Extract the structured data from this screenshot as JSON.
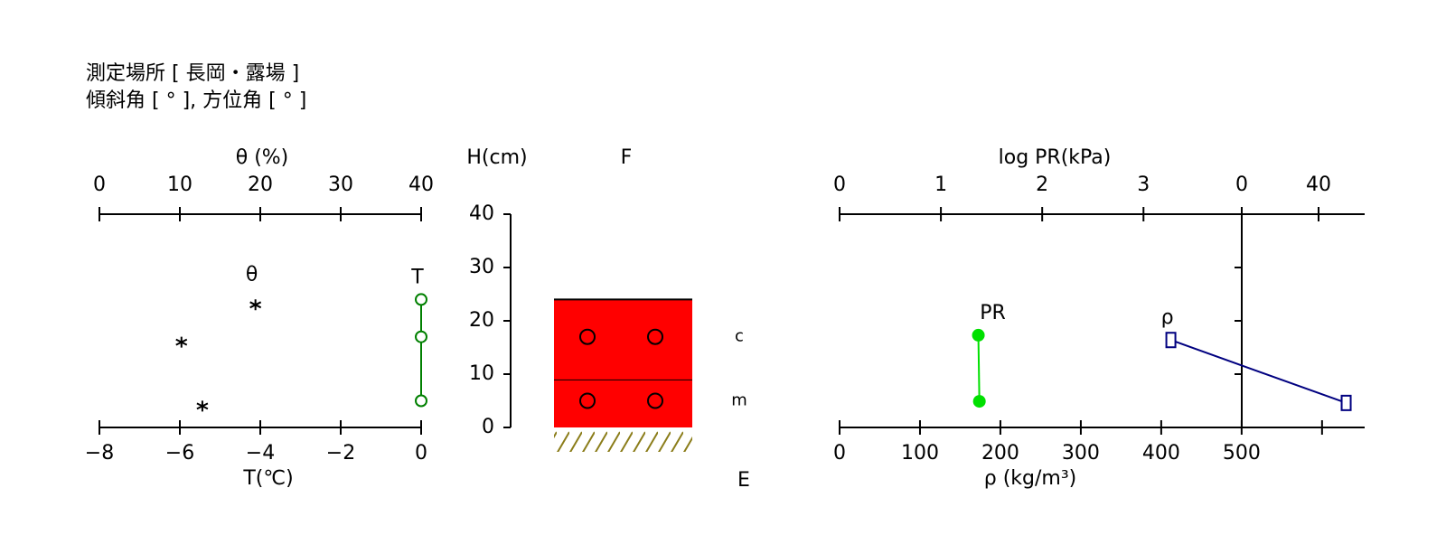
{
  "header": {
    "location": "測定場所 [ 長岡・露場 ]",
    "angles": "傾斜角 [ ° ], 方位角 [ ° ]"
  },
  "chart_data": [
    {
      "type": "scatter",
      "x2_label": "θ (%)",
      "x2lim": [
        0,
        40
      ],
      "x2ticks": [
        0,
        10,
        20,
        30,
        40
      ],
      "x_label": "T(℃)",
      "xlim": [
        -8,
        0
      ],
      "xticks": [
        {
          "value": -8,
          "label": "−8"
        },
        {
          "value": -6,
          "label": "−6"
        },
        {
          "value": -4,
          "label": "−4"
        },
        {
          "value": -2,
          "label": "−2"
        },
        0
      ],
      "ylim": [
        0,
        40
      ],
      "series": [
        {
          "name": "θ",
          "color": "#000000",
          "marker": "asterisk",
          "axis": "x2",
          "x": [
            19.4,
            10.2,
            12.8
          ],
          "values": [
            23,
            16,
            4
          ]
        },
        {
          "name": "T",
          "color": "#008000",
          "marker": "circle",
          "line": true,
          "x": [
            0,
            0,
            0
          ],
          "values": [
            24,
            17,
            5
          ]
        }
      ]
    },
    {
      "type": "profile",
      "y_label": "H(cm)",
      "top_label": "F",
      "bottom_label": "E",
      "ylim": [
        0,
        40
      ],
      "yticks": [
        0,
        10,
        20,
        30,
        40
      ],
      "color": "#ff0000",
      "layers": [
        {
          "bottom": 0,
          "top": 9,
          "grain": "m",
          "height": 5
        },
        {
          "bottom": 9,
          "top": 24,
          "grain": "c",
          "height": 17
        }
      ]
    },
    {
      "type": "scatter",
      "x2_label": "log PR(kPa)",
      "x2lim": [
        0,
        3.97
      ],
      "x2ticks": [
        0,
        1,
        2,
        3
      ],
      "x3lim": [
        0,
        64
      ],
      "x3ticks": [
        0,
        40
      ],
      "x_label": "ρ (kg/m³)",
      "xlim": [
        0,
        653
      ],
      "xticks": [
        0,
        100,
        200,
        300,
        400,
        500
      ],
      "xticks_unlabeled": [
        600
      ],
      "ylim": [
        0,
        40
      ],
      "yticks": [
        10,
        20,
        30
      ],
      "series": [
        {
          "name": "PR",
          "color": "#00e000",
          "marker": "dot",
          "line": true,
          "axis": "x2",
          "x": [
            1.37,
            1.38
          ],
          "values": [
            17.3,
            4.9
          ]
        },
        {
          "name": "ρ",
          "color": "#000080",
          "marker": "square",
          "line": true,
          "x": [
            412,
            630
          ],
          "values": [
            16.4,
            4.6
          ]
        }
      ]
    }
  ]
}
